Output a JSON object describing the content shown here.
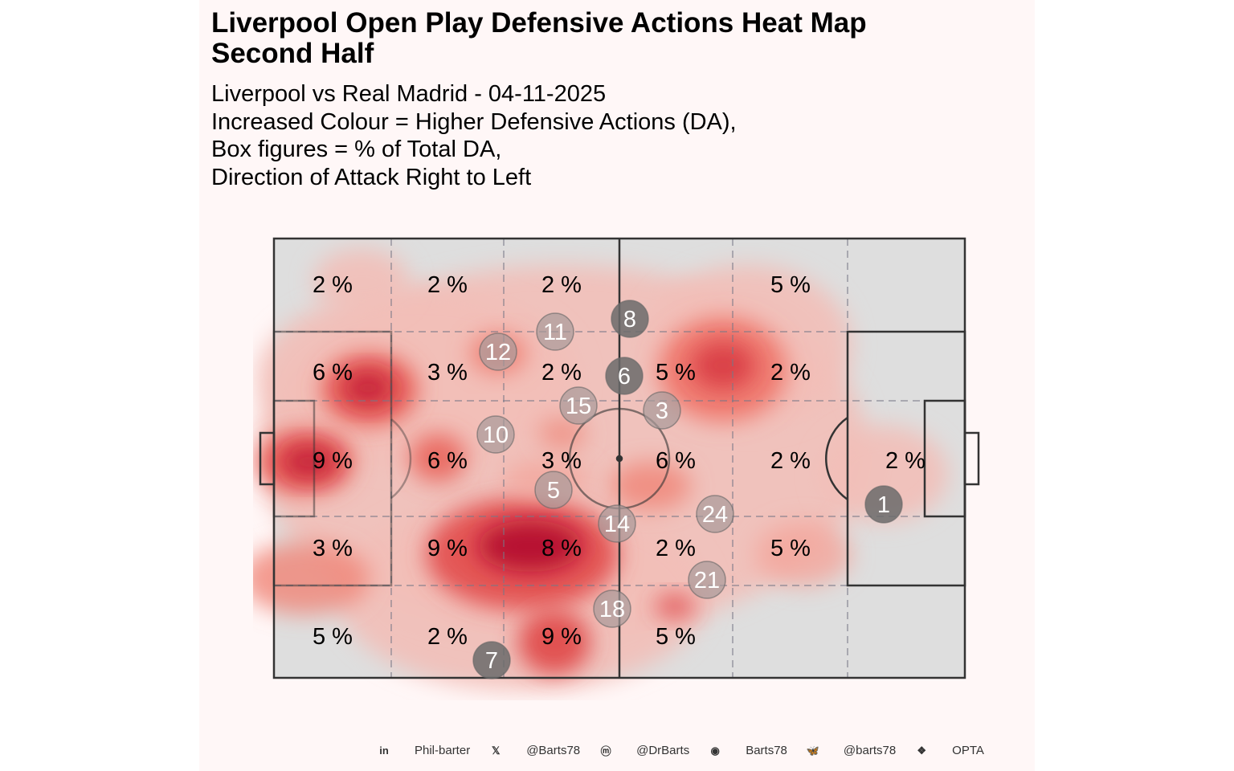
{
  "title": {
    "line1": "Liverpool Open Play Defensive Actions Heat Map",
    "line2": "Second Half"
  },
  "subtitle": [
    "Liverpool vs Real Madrid - 04-11-2025",
    "Increased Colour = Higher Defensive Actions (DA),",
    "Box figures = % of Total DA,",
    "Direction of Attack Right to Left"
  ],
  "chart_data": {
    "type": "heatmap",
    "zone_percentages": [
      [
        "2 %",
        "2 %",
        "2 %",
        "",
        "5 %",
        ""
      ],
      [
        "6 %",
        "3 %",
        "2 %",
        "5 %",
        "2 %",
        ""
      ],
      [
        "9 %",
        "6 %",
        "3 %",
        "6 %",
        "2 %",
        "2 %"
      ],
      [
        "3 %",
        "9 %",
        "8 %",
        "2 %",
        "5 %",
        ""
      ],
      [
        "5 %",
        "2 %",
        "9 %",
        "5 %",
        "",
        ""
      ]
    ],
    "player_markers": [
      {
        "number": "8",
        "style": "dark"
      },
      {
        "number": "11",
        "style": "light"
      },
      {
        "number": "12",
        "style": "light"
      },
      {
        "number": "6",
        "style": "dark"
      },
      {
        "number": "15",
        "style": "light"
      },
      {
        "number": "3",
        "style": "light"
      },
      {
        "number": "10",
        "style": "light"
      },
      {
        "number": "5",
        "style": "light"
      },
      {
        "number": "14",
        "style": "light"
      },
      {
        "number": "24",
        "style": "light"
      },
      {
        "number": "21",
        "style": "light"
      },
      {
        "number": "1",
        "style": "dark"
      },
      {
        "number": "7",
        "style": "dark"
      },
      {
        "number": "18",
        "style": "light"
      }
    ],
    "colors": {
      "low": "#f4b8b0",
      "mid": "#e8574f",
      "high": "#b5122e",
      "pitch": "#dedede",
      "marker_dark": "#6b6b6b",
      "marker_light": "#a89a9a"
    }
  },
  "footer": [
    {
      "icon": "linkedin-icon",
      "text": "Phil-barter"
    },
    {
      "icon": "x-icon",
      "text": "@Barts78"
    },
    {
      "icon": "mastodon-icon",
      "text": "@DrBarts"
    },
    {
      "icon": "github-icon",
      "text": "Barts78"
    },
    {
      "icon": "bluesky-icon",
      "text": "@barts78"
    },
    {
      "icon": "dropbox-icon",
      "text": "OPTA"
    }
  ]
}
